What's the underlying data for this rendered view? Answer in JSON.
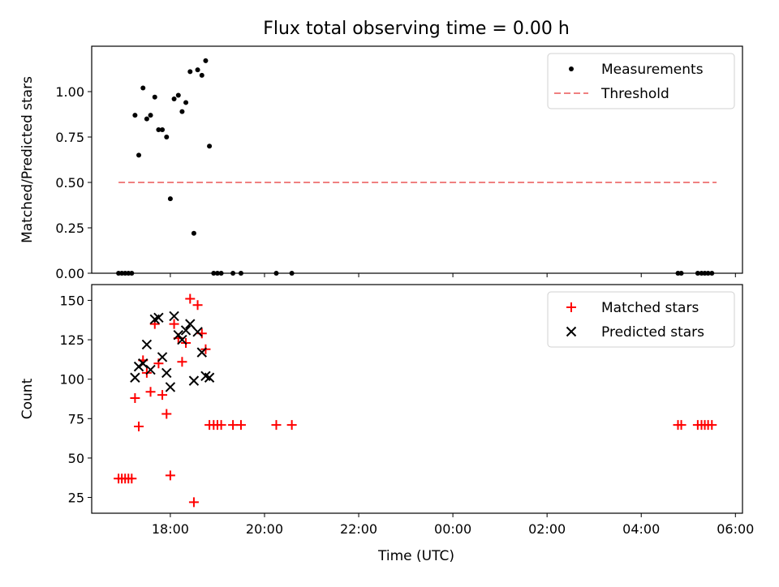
{
  "figure": {
    "title": "Flux total observing time = 0.00 h",
    "xlabel": "Time (UTC)"
  },
  "colors": {
    "measurements": "#000000",
    "threshold": "#f08080",
    "matched": "#ff0000",
    "predicted": "#000000"
  },
  "chart_data": [
    {
      "type": "scatter",
      "ylabel": "Matched/Predicted stars",
      "xlim": [
        16.33,
        30.15
      ],
      "ylim": [
        0,
        1.25
      ],
      "x_ticks": [
        18,
        20,
        22,
        24,
        26,
        28,
        30
      ],
      "x_tick_labels": [],
      "y_ticks": [
        0,
        0.25,
        0.5,
        0.75,
        1.0
      ],
      "y_tick_labels": [
        "0.00",
        "0.25",
        "0.50",
        "0.75",
        "1.00"
      ],
      "legend": {
        "position": "top-right",
        "entries": [
          "Measurements",
          "Threshold"
        ]
      },
      "series": [
        {
          "name": "Measurements",
          "kind": "points",
          "x": [
            16.9,
            16.97,
            17.04,
            17.11,
            17.18,
            17.25,
            17.33,
            17.42,
            17.5,
            17.58,
            17.67,
            17.75,
            17.83,
            17.92,
            18.0,
            18.08,
            18.17,
            18.25,
            18.33,
            18.42,
            18.5,
            18.58,
            18.67,
            18.75,
            18.83,
            18.92,
            19.0,
            19.08,
            19.33,
            19.5,
            20.25,
            20.58,
            28.78,
            28.85,
            29.2,
            29.28,
            29.35,
            29.42,
            29.5
          ],
          "y": [
            0,
            0,
            0,
            0,
            0,
            0.87,
            0.65,
            1.02,
            0.85,
            0.87,
            0.97,
            0.79,
            0.79,
            0.75,
            0.41,
            0.96,
            0.98,
            0.89,
            0.94,
            1.11,
            0.22,
            1.12,
            1.09,
            1.17,
            0.7,
            0,
            0,
            0,
            0,
            0,
            0,
            0,
            0,
            0,
            0,
            0,
            0,
            0,
            0
          ]
        },
        {
          "name": "Threshold",
          "kind": "line",
          "x": [
            16.9,
            29.6
          ],
          "y": [
            0.5,
            0.5
          ]
        }
      ]
    },
    {
      "type": "scatter",
      "ylabel": "Count",
      "xlim": [
        16.33,
        30.15
      ],
      "ylim": [
        15,
        160
      ],
      "x_ticks": [
        18,
        20,
        22,
        24,
        26,
        28,
        30
      ],
      "x_tick_labels": [
        "18:00",
        "20:00",
        "22:00",
        "00:00",
        "02:00",
        "04:00",
        "06:00"
      ],
      "y_ticks": [
        25,
        50,
        75,
        100,
        125,
        150
      ],
      "y_tick_labels": [
        "25",
        "50",
        "75",
        "100",
        "125",
        "150"
      ],
      "legend": {
        "position": "top-right",
        "entries": [
          "Matched stars",
          "Predicted stars"
        ]
      },
      "series": [
        {
          "name": "Matched stars",
          "kind": "plus",
          "x": [
            16.9,
            16.97,
            17.04,
            17.11,
            17.18,
            17.25,
            17.33,
            17.42,
            17.5,
            17.58,
            17.67,
            17.75,
            17.83,
            17.92,
            18.0,
            18.08,
            18.17,
            18.25,
            18.33,
            18.42,
            18.5,
            18.58,
            18.67,
            18.75,
            18.83,
            18.92,
            19.0,
            19.08,
            19.33,
            19.5,
            20.25,
            20.58,
            28.78,
            28.85,
            29.2,
            29.28,
            29.35,
            29.42,
            29.5
          ],
          "y": [
            37,
            37,
            37,
            37,
            37,
            88,
            70,
            112,
            104,
            92,
            135,
            110,
            90,
            78,
            39,
            135,
            126,
            111,
            123,
            151,
            22,
            147,
            129,
            119,
            71,
            71,
            71,
            71,
            71,
            71,
            71,
            71,
            71,
            71,
            71,
            71,
            71,
            71,
            71
          ]
        },
        {
          "name": "Predicted stars",
          "kind": "cross",
          "x": [
            17.25,
            17.33,
            17.42,
            17.5,
            17.58,
            17.67,
            17.75,
            17.83,
            17.92,
            18.0,
            18.08,
            18.17,
            18.25,
            18.33,
            18.42,
            18.5,
            18.58,
            18.67,
            18.75,
            18.83
          ],
          "y": [
            101,
            108,
            110,
            122,
            106,
            138,
            139,
            114,
            104,
            95,
            140,
            128,
            125,
            131,
            135,
            99,
            130,
            117,
            102,
            101
          ]
        }
      ]
    }
  ]
}
